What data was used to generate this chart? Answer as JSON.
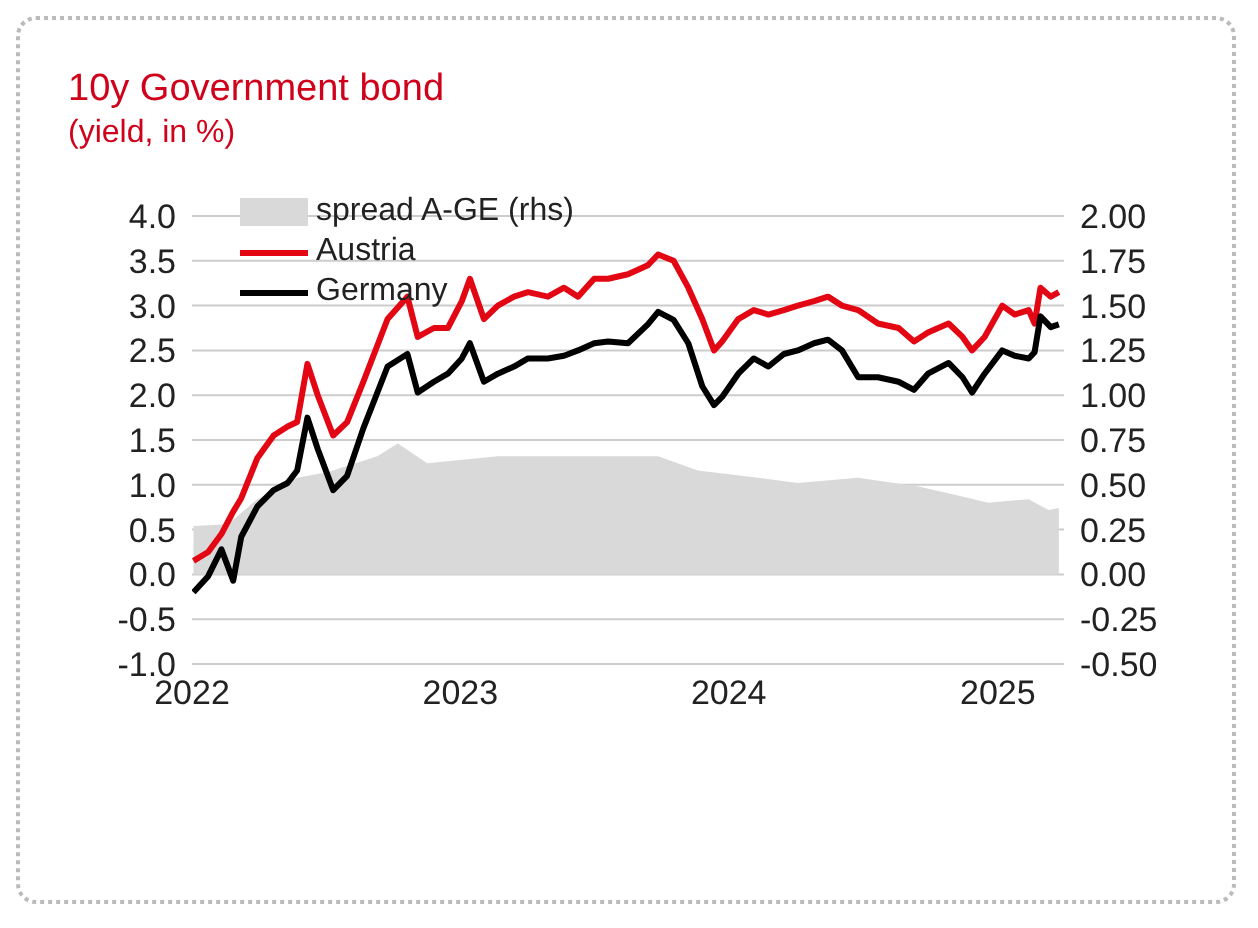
{
  "chart_data": {
    "type": "line",
    "title": "10y Government bond",
    "subtitle": "(yield, in %)",
    "series": [
      {
        "name": "spread A-GE (rhs)",
        "type": "area",
        "axis": "y2",
        "color": "#d9d9d9",
        "x": [
          "2022-01-03",
          "2022-02-19",
          "2022-03-31",
          "2022-05-24",
          "2022-07-04",
          "2022-09-10",
          "2022-10-08",
          "2022-11-17",
          "2023-02-21",
          "2023-07-07",
          "2023-09-27",
          "2023-11-20",
          "2024-02-10",
          "2024-04-04",
          "2024-06-25",
          "2024-09-15",
          "2024-11-08",
          "2024-12-19",
          "2025-02-12",
          "2025-03-11",
          "2025-03-25"
        ],
        "values": [
          0.27,
          0.28,
          0.42,
          0.54,
          0.57,
          0.66,
          0.73,
          0.62,
          0.66,
          0.66,
          0.66,
          0.58,
          0.54,
          0.51,
          0.54,
          0.49,
          0.44,
          0.4,
          0.42,
          0.36,
          0.37
        ]
      },
      {
        "name": "Austria",
        "color": "#e30613",
        "values": [
          0.15,
          0.25,
          0.45,
          0.7,
          0.85,
          1.3,
          1.55,
          1.65,
          1.7,
          2.35,
          2.0,
          1.55,
          1.7,
          2.15,
          2.85,
          3.1,
          2.65,
          2.75,
          2.75,
          3.05,
          3.3,
          2.85,
          3.0,
          3.1,
          3.15,
          3.1,
          3.2,
          3.1,
          3.3,
          3.3,
          3.35,
          3.45,
          3.57,
          3.5,
          3.2,
          2.85,
          2.5,
          2.6,
          2.85,
          2.95,
          2.9,
          2.95,
          3.0,
          3.05,
          3.1,
          3.0,
          2.95,
          2.8,
          2.75,
          2.6,
          2.7,
          2.8,
          2.65,
          2.5,
          2.65,
          3.0,
          2.9,
          2.95,
          2.8,
          3.2,
          3.1,
          3.15
        ]
      },
      {
        "name": "Germany",
        "color": "#000000",
        "values": [
          -0.2,
          -0.02,
          0.28,
          -0.07,
          0.42,
          0.76,
          0.94,
          1.02,
          1.16,
          1.75,
          1.4,
          0.94,
          1.1,
          1.63,
          2.32,
          2.46,
          2.03,
          2.15,
          2.24,
          2.41,
          2.58,
          2.15,
          2.24,
          2.32,
          2.41,
          2.41,
          2.44,
          2.5,
          2.58,
          2.6,
          2.58,
          2.79,
          2.93,
          2.84,
          2.58,
          2.1,
          1.89,
          1.98,
          2.24,
          2.41,
          2.32,
          2.46,
          2.5,
          2.58,
          2.62,
          2.5,
          2.2,
          2.2,
          2.15,
          2.06,
          2.24,
          2.36,
          2.2,
          2.03,
          2.24,
          2.5,
          2.44,
          2.41,
          2.48,
          2.88,
          2.76,
          2.79
        ]
      }
    ],
    "x": [
      "2022-01-03",
      "2022-01-23",
      "2022-02-10",
      "2022-02-26",
      "2022-03-09",
      "2022-03-31",
      "2022-04-22",
      "2022-05-11",
      "2022-05-24",
      "2022-06-07",
      "2022-06-21",
      "2022-07-12",
      "2022-07-31",
      "2022-08-22",
      "2022-09-24",
      "2022-10-21",
      "2022-11-04",
      "2022-11-26",
      "2022-12-15",
      "2023-01-03",
      "2023-01-14",
      "2023-02-02",
      "2023-02-21",
      "2023-03-15",
      "2023-04-03",
      "2023-04-30",
      "2023-05-22",
      "2023-06-10",
      "2023-07-02",
      "2023-07-21",
      "2023-08-17",
      "2023-09-13",
      "2023-09-27",
      "2023-10-18",
      "2023-11-07",
      "2023-11-26",
      "2023-12-12",
      "2023-12-23",
      "2024-01-14",
      "2024-02-04",
      "2024-02-24",
      "2024-03-16",
      "2024-04-04",
      "2024-04-26",
      "2024-05-15",
      "2024-06-03",
      "2024-06-25",
      "2024-07-22",
      "2024-08-19",
      "2024-09-09",
      "2024-09-28",
      "2024-10-26",
      "2024-11-14",
      "2024-11-27",
      "2024-12-14",
      "2025-01-07",
      "2025-01-24",
      "2025-02-12",
      "2025-02-20",
      "2025-02-28",
      "2025-03-14",
      "2025-03-25"
    ],
    "xlim": [
      "2022-01-01",
      "2025-04-01"
    ],
    "xticks": [
      "2022",
      "2023",
      "2024",
      "2025"
    ],
    "ylim": [
      -1.0,
      4.0
    ],
    "yticks": [
      {
        "value": -1,
        "label": "-1.0"
      },
      -0.5,
      {
        "value": 0,
        "label": "0.0"
      },
      0.5,
      {
        "value": 1,
        "label": "1.0"
      },
      1.5,
      {
        "value": 2,
        "label": "2.0"
      },
      2.5,
      {
        "value": 3,
        "label": "3.0"
      },
      3.5,
      {
        "value": 4,
        "label": "4.0"
      }
    ],
    "y2lim": [
      -0.5,
      2.0
    ],
    "y2ticks": [
      {
        "value": -0.5,
        "label": "-0.50"
      },
      -0.25,
      {
        "value": 0,
        "label": "0.00"
      },
      0.25,
      {
        "value": 0.5,
        "label": "0.50"
      },
      0.75,
      {
        "value": 1,
        "label": "1.00"
      },
      1.25,
      {
        "value": 1.5,
        "label": "1.50"
      },
      1.75,
      {
        "value": 2,
        "label": "2.00"
      }
    ],
    "grid": "y",
    "legend": "top left",
    "marker": "none",
    "line_style": "solid"
  }
}
